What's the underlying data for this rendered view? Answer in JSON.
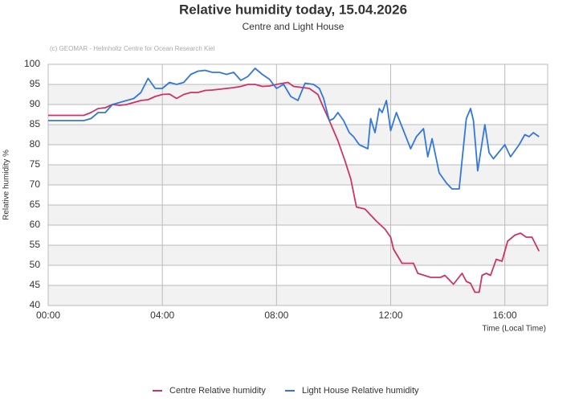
{
  "chart_data": {
    "type": "line",
    "title": "Relative humidity today, 15.04.2026",
    "subtitle": "Centre and Light House",
    "credit": "(c) GEOMAR - Helmholtz Centre for Ocean Research Kiel",
    "y_label": "Relative humidity %",
    "x_label": "Time (Local Time)",
    "xlim": [
      0,
      17.5
    ],
    "xticks": [
      {
        "value": 0,
        "label": "00:00"
      },
      {
        "value": 4,
        "label": "04:00"
      },
      {
        "value": 8,
        "label": "08:00"
      },
      {
        "value": 12,
        "label": "12:00"
      },
      {
        "value": 16,
        "label": "16:00"
      }
    ],
    "ylim": [
      40,
      100
    ],
    "yticks": [
      40,
      45,
      50,
      55,
      60,
      65,
      70,
      75,
      80,
      85,
      90,
      95,
      100
    ],
    "grid": true,
    "legend": "bottom",
    "series": [
      {
        "name": "Centre Relative humidity",
        "color": "#cc3366",
        "x": [
          0,
          1.25,
          1.5,
          1.75,
          2,
          2.25,
          2.5,
          2.75,
          3,
          3.25,
          3.5,
          3.75,
          4,
          4.25,
          4.5,
          4.75,
          5,
          5.25,
          5.5,
          5.75,
          6,
          6.25,
          6.5,
          6.75,
          7,
          7.25,
          7.5,
          7.75,
          8,
          8.4,
          8.6,
          9.15,
          9.45,
          9.6,
          9.85,
          10.15,
          10.4,
          10.6,
          10.8,
          11.1,
          11.5,
          11.8,
          12,
          12.1,
          12.4,
          12.8,
          12.95,
          13.4,
          13.75,
          13.9,
          14.2,
          14.5,
          14.65,
          14.8,
          14.95,
          15.1,
          15.2,
          15.35,
          15.5,
          15.7,
          15.9,
          16.1,
          16.35,
          16.55,
          16.75,
          16.95,
          17.2
        ],
        "values": [
          87.3,
          87.3,
          88,
          89,
          89.2,
          90,
          89.8,
          90,
          90.5,
          91,
          91.2,
          92,
          92.5,
          92.6,
          91.5,
          92.5,
          93,
          93,
          93.5,
          93.6,
          93.8,
          94,
          94.2,
          94.5,
          95,
          95,
          94.5,
          94.6,
          95,
          95.5,
          94.5,
          94,
          92.5,
          90,
          86,
          81,
          76,
          71.5,
          64.5,
          64,
          61,
          59,
          57,
          54,
          50.5,
          50.5,
          48,
          47,
          47,
          47.5,
          45.3,
          48,
          46,
          45.5,
          43.3,
          43.3,
          47.5,
          48,
          47.5,
          51.5,
          51,
          56,
          57.5,
          58,
          57,
          57,
          53.5
        ]
      },
      {
        "name": "Light House Relative humidity",
        "color": "#3377dd",
        "x": [
          0,
          1.25,
          1.5,
          1.75,
          2,
          2.25,
          2.5,
          2.75,
          3,
          3.25,
          3.5,
          3.75,
          4,
          4.25,
          4.5,
          4.75,
          5,
          5.25,
          5.5,
          5.75,
          6,
          6.25,
          6.5,
          6.75,
          7,
          7.25,
          7.5,
          7.75,
          8,
          8.25,
          8.5,
          8.75,
          9,
          9.3,
          9.5,
          9.65,
          9.85,
          10,
          10.15,
          10.35,
          10.55,
          10.7,
          10.9,
          11.05,
          11.2,
          11.3,
          11.45,
          11.6,
          11.7,
          11.85,
          12,
          12.2,
          12.7,
          12.9,
          13.15,
          13.3,
          13.45,
          13.7,
          13.95,
          14.15,
          14.4,
          14.65,
          14.8,
          14.9,
          15.05,
          15.3,
          15.45,
          15.6,
          16,
          16.2,
          16.5,
          16.7,
          16.85,
          17,
          17.2
        ],
        "values": [
          86,
          86,
          86.5,
          88,
          88,
          90,
          90.5,
          91,
          91.5,
          93,
          96.5,
          94,
          94,
          95.5,
          95,
          95.5,
          97.5,
          98.3,
          98.5,
          98,
          98,
          97.5,
          98,
          96,
          97,
          99,
          97.5,
          96.3,
          94,
          95,
          92,
          91,
          95.3,
          95,
          94,
          91.5,
          86,
          86.5,
          88,
          86,
          83,
          82,
          80,
          79.5,
          79,
          86.5,
          83,
          89,
          88,
          91,
          83.5,
          88,
          79,
          82,
          84,
          77,
          81.5,
          73,
          70.5,
          69,
          69,
          86.5,
          89,
          86,
          73.5,
          85,
          78,
          76.5,
          80,
          77,
          80,
          82.5,
          82,
          83,
          82
        ]
      }
    ]
  }
}
